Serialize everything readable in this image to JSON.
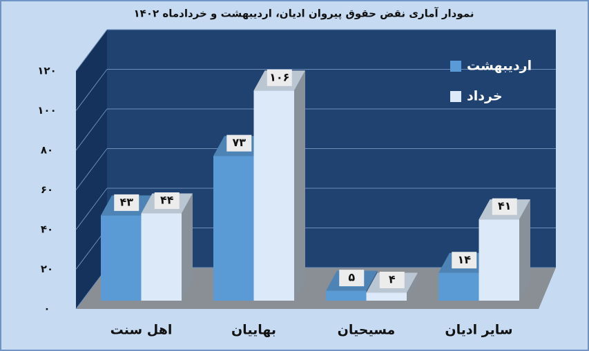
{
  "chart_data": {
    "type": "bar3d",
    "title": "نمودار آماری نقض حقوق پیروان ادیان، اردیبهشت و خردادماه ۱۴۰۲",
    "categories": [
      "اهل سنت",
      "بهاییان",
      "مسیحیان",
      "سایر ادیان"
    ],
    "series": [
      {
        "name": "اردیبهشت",
        "color": "#5b9bd5",
        "values": [
          43,
          73,
          5,
          14
        ],
        "value_labels": [
          "۴۳",
          "۷۳",
          "۵",
          "۱۴"
        ]
      },
      {
        "name": "خرداد",
        "color": "#dce9f8",
        "values": [
          44,
          106,
          4,
          41
        ],
        "value_labels": [
          "۴۴",
          "۱۰۶",
          "۴",
          "۴۱"
        ]
      }
    ],
    "ylim": [
      0,
      120
    ],
    "yticks": [
      {
        "value": 0,
        "label": "۰"
      },
      {
        "value": 20,
        "label": "۲۰"
      },
      {
        "value": 40,
        "label": "۴۰"
      },
      {
        "value": 60,
        "label": "۶۰"
      },
      {
        "value": 80,
        "label": "۸۰"
      },
      {
        "value": 100,
        "label": "۱۰۰"
      },
      {
        "value": 120,
        "label": "۱۲۰"
      }
    ],
    "grid": true,
    "legend": "top-right"
  }
}
